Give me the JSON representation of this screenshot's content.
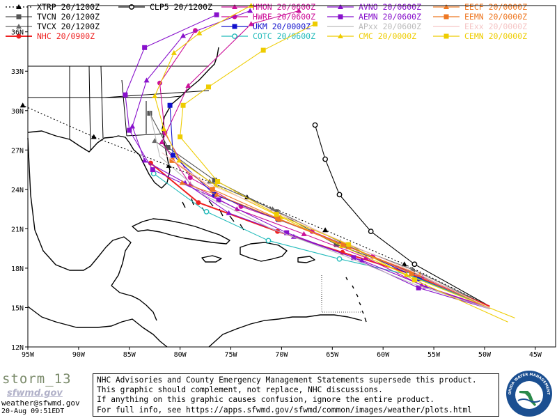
{
  "legend": [
    {
      "label": "XTRP 20/1200Z",
      "color": "#000000",
      "marker": "triangle",
      "dash": "dotted"
    },
    {
      "label": "TVCN 20/1200Z",
      "color": "#555555",
      "marker": "square",
      "dash": "solid"
    },
    {
      "label": "TVCX 20/1200Z",
      "color": "#666666",
      "marker": "triangle",
      "dash": "solid"
    },
    {
      "label": "NHC 20/0900Z",
      "color": "#ee2222",
      "marker": "circle",
      "dash": "solid"
    },
    {
      "label": "CLP5 20/1200Z",
      "color": "#000000",
      "marker": "ring",
      "dash": "solid"
    },
    {
      "label": "HMON 20/0600Z",
      "color": "#cc1199",
      "marker": "triangle",
      "dash": "solid"
    },
    {
      "label": "HWRF 20/0600Z",
      "color": "#cc1199",
      "marker": "circle",
      "dash": "solid"
    },
    {
      "label": "UKM 20/0000Z",
      "color": "#1111cc",
      "marker": "square",
      "dash": "solid"
    },
    {
      "label": "COTC 20/0600Z",
      "color": "#22bbbb",
      "marker": "ring",
      "dash": "solid"
    },
    {
      "label": "AVNO 20/0600Z",
      "color": "#8811cc",
      "marker": "triangle",
      "dash": "solid"
    },
    {
      "label": "AEMN 20/0600Z",
      "color": "#8811cc",
      "marker": "square",
      "dash": "solid"
    },
    {
      "label": "APxx 20/0600Z",
      "color": "#bbbbbb",
      "marker": "none",
      "dash": "solid"
    },
    {
      "label": "CMC 20/0000Z",
      "color": "#eecc00",
      "marker": "triangle",
      "dash": "solid"
    },
    {
      "label": "EECF 20/0000Z",
      "color": "#ee7722",
      "marker": "triangle",
      "dash": "solid"
    },
    {
      "label": "EEMN 20/0000Z",
      "color": "#ee7722",
      "marker": "square",
      "dash": "solid"
    },
    {
      "label": "EExx 20/0000Z",
      "color": "#f5c5c5",
      "marker": "none",
      "dash": "solid"
    },
    {
      "label": "CEMN 20/0000Z",
      "color": "#eecc00",
      "marker": "square",
      "dash": "solid"
    }
  ],
  "map": {
    "lon_range": [
      -95,
      -43
    ],
    "lat_range": [
      12,
      38
    ],
    "lon_ticks": [
      {
        "lon": -95,
        "label": "95W"
      },
      {
        "lon": -90,
        "label": "90W"
      },
      {
        "lon": -85,
        "label": "85W"
      },
      {
        "lon": -80,
        "label": "80W"
      },
      {
        "lon": -75,
        "label": "75W"
      },
      {
        "lon": -70,
        "label": "70W"
      },
      {
        "lon": -65,
        "label": "65W"
      },
      {
        "lon": -60,
        "label": "60W"
      },
      {
        "lon": -55,
        "label": "55W"
      },
      {
        "lon": -50,
        "label": "50W"
      },
      {
        "lon": -45,
        "label": "45W"
      }
    ],
    "lat_ticks": [
      {
        "lat": 12,
        "label": "12N"
      },
      {
        "lat": 15,
        "label": "15N"
      },
      {
        "lat": 18,
        "label": "18N"
      },
      {
        "lat": 21,
        "label": "21N"
      },
      {
        "lat": 24,
        "label": "24N"
      },
      {
        "lat": 27,
        "label": "27N"
      },
      {
        "lat": 30,
        "label": "30N"
      },
      {
        "lat": 33,
        "label": "33N"
      },
      {
        "lat": 36,
        "label": "36N"
      }
    ]
  },
  "tracks": [
    {
      "name": "XTRP",
      "color": "#000000",
      "marker": "triangle",
      "dash": "dotted",
      "points": [
        [
          -49.5,
          15.1
        ],
        [
          -57.9,
          18.3
        ],
        [
          -65.7,
          20.9
        ],
        [
          -73.4,
          23.4
        ],
        [
          -81.1,
          25.8
        ],
        [
          -88.5,
          28.0
        ],
        [
          -95.5,
          30.4
        ]
      ]
    },
    {
      "name": "CLP5",
      "color": "#000000",
      "marker": "ring",
      "dash": "solid",
      "points": [
        [
          -49.5,
          15.1
        ],
        [
          -56.9,
          18.3
        ],
        [
          -61.2,
          20.8
        ],
        [
          -64.3,
          23.6
        ],
        [
          -65.7,
          26.3
        ],
        [
          -66.7,
          28.9
        ]
      ]
    },
    {
      "name": "TVCN",
      "color": "#555555",
      "marker": "square",
      "dash": "solid",
      "points": [
        [
          -49.5,
          15.1
        ],
        [
          -57.1,
          17.7
        ],
        [
          -64.6,
          19.8
        ],
        [
          -70.5,
          22.3
        ],
        [
          -76.6,
          24.7
        ],
        [
          -81.2,
          27.2
        ],
        [
          -83.0,
          29.8
        ]
      ]
    },
    {
      "name": "TVCX",
      "color": "#666666",
      "marker": "triangle",
      "dash": "solid",
      "points": [
        [
          -49.5,
          15.1
        ],
        [
          -57.1,
          17.9
        ],
        [
          -64.2,
          20.0
        ],
        [
          -70.9,
          22.5
        ],
        [
          -77.1,
          24.6
        ],
        [
          -82.5,
          27.7
        ]
      ]
    },
    {
      "name": "NHC",
      "color": "#ee2222",
      "marker": "circle",
      "dash": "solid",
      "points": [
        [
          -49.5,
          15.1
        ],
        [
          -57.4,
          17.6
        ],
        [
          -64.0,
          19.2
        ],
        [
          -70.4,
          20.8
        ],
        [
          -78.2,
          23.0
        ],
        [
          -82.9,
          26.0
        ]
      ]
    },
    {
      "name": "HMON",
      "color": "#cc1199",
      "marker": "triangle",
      "dash": "solid",
      "points": [
        [
          -49.5,
          15.0
        ],
        [
          -56.2,
          16.7
        ],
        [
          -61.7,
          18.8
        ],
        [
          -67.8,
          20.6
        ],
        [
          -74.4,
          22.5
        ],
        [
          -79.0,
          24.4
        ],
        [
          -81.8,
          27.6
        ],
        [
          -79.2,
          31.9
        ],
        [
          -73.0,
          36.6
        ],
        [
          -68.3,
          37.6
        ]
      ]
    },
    {
      "name": "HWRF",
      "color": "#cc1199",
      "marker": "circle",
      "dash": "solid",
      "points": [
        [
          -49.5,
          15.0
        ],
        [
          -56.2,
          17.3
        ],
        [
          -61.0,
          18.9
        ],
        [
          -67.0,
          20.8
        ],
        [
          -74.0,
          22.7
        ],
        [
          -79.0,
          24.9
        ],
        [
          -81.5,
          28.3
        ],
        [
          -82.0,
          32.1
        ],
        [
          -78.5,
          36.1
        ]
      ]
    },
    {
      "name": "UKM",
      "color": "#1111cc",
      "marker": "square",
      "dash": "solid",
      "points": [
        [
          -49.5,
          15.0
        ],
        [
          -56.4,
          17.2
        ],
        [
          -63.5,
          19.7
        ],
        [
          -70.3,
          21.7
        ],
        [
          -76.6,
          23.6
        ],
        [
          -80.7,
          26.6
        ],
        [
          -81.0,
          30.4
        ]
      ]
    },
    {
      "name": "COTC",
      "color": "#22bbbb",
      "marker": "ring",
      "dash": "solid",
      "points": [
        [
          -49.5,
          15.0
        ],
        [
          -57.5,
          17.5
        ],
        [
          -64.3,
          18.7
        ],
        [
          -71.3,
          20.1
        ],
        [
          -77.4,
          22.3
        ],
        [
          -82.6,
          25.2
        ]
      ]
    },
    {
      "name": "AVNO",
      "color": "#8811cc",
      "marker": "triangle",
      "dash": "solid",
      "points": [
        [
          -49.5,
          14.9
        ],
        [
          -55.8,
          16.6
        ],
        [
          -62.1,
          18.6
        ],
        [
          -68.8,
          20.4
        ],
        [
          -75.2,
          22.2
        ],
        [
          -79.5,
          24.5
        ],
        [
          -83.5,
          26.2
        ],
        [
          -84.7,
          28.8
        ],
        [
          -83.3,
          32.3
        ],
        [
          -79.7,
          35.7
        ],
        [
          -73.1,
          37.6
        ]
      ]
    },
    {
      "name": "AEMN",
      "color": "#8811cc",
      "marker": "square",
      "dash": "solid",
      "points": [
        [
          -49.5,
          14.9
        ],
        [
          -56.5,
          16.5
        ],
        [
          -62.9,
          18.8
        ],
        [
          -69.5,
          20.7
        ],
        [
          -76.2,
          23.2
        ],
        [
          -82.7,
          25.5
        ],
        [
          -85.0,
          28.5
        ],
        [
          -85.4,
          31.2
        ],
        [
          -83.5,
          34.8
        ],
        [
          -76.4,
          37.3
        ]
      ]
    },
    {
      "name": "APxx",
      "color": "#bbbbbb",
      "marker": "none",
      "dash": "solid",
      "points": [
        [
          -49.5,
          14.9
        ],
        [
          -57.0,
          16.8
        ],
        [
          -64.0,
          19.0
        ],
        [
          -71.0,
          21.0
        ],
        [
          -77.5,
          23.5
        ],
        [
          -82.0,
          26.5
        ],
        [
          -83.0,
          30.0
        ]
      ]
    },
    {
      "name": "CMC",
      "color": "#eecc00",
      "marker": "triangle",
      "dash": "solid",
      "points": [
        [
          -47.0,
          14.2
        ],
        [
          -57.7,
          17.5
        ],
        [
          -64.1,
          19.7
        ],
        [
          -70.1,
          21.9
        ],
        [
          -76.5,
          24.3
        ],
        [
          -80.1,
          26.2
        ],
        [
          -81.6,
          28.6
        ],
        [
          -82.5,
          31.1
        ],
        [
          -80.6,
          34.4
        ],
        [
          -78.1,
          35.9
        ],
        [
          -73.0,
          38.0
        ]
      ]
    },
    {
      "name": "EECF",
      "color": "#ee7722",
      "marker": "triangle",
      "dash": "solid",
      "points": [
        [
          -49.5,
          15.0
        ],
        [
          -56.4,
          17.5
        ],
        [
          -63.4,
          19.6
        ],
        [
          -70.2,
          21.7
        ],
        [
          -76.4,
          23.6
        ],
        [
          -79.8,
          24.5
        ]
      ]
    },
    {
      "name": "EEMN",
      "color": "#ee7722",
      "marker": "square",
      "dash": "solid",
      "points": [
        [
          -49.5,
          15.0
        ],
        [
          -57.2,
          17.6
        ],
        [
          -63.9,
          19.8
        ],
        [
          -70.4,
          21.8
        ],
        [
          -76.8,
          24.0
        ],
        [
          -80.8,
          26.2
        ]
      ]
    },
    {
      "name": "EExx",
      "color": "#f5c5c5",
      "marker": "none",
      "dash": "solid",
      "points": [
        [
          -49.5,
          15.0
        ],
        [
          -57.5,
          17.9
        ],
        [
          -64.5,
          20.2
        ],
        [
          -71.0,
          22.4
        ],
        [
          -77.5,
          24.5
        ],
        [
          -81.8,
          26.8
        ]
      ]
    },
    {
      "name": "CEMN",
      "color": "#eecc00",
      "marker": "square",
      "dash": "solid",
      "points": [
        [
          -47.7,
          13.9
        ],
        [
          -56.9,
          17.1
        ],
        [
          -63.4,
          19.8
        ],
        [
          -70.5,
          22.1
        ],
        [
          -76.3,
          24.6
        ],
        [
          -80.0,
          28.0
        ],
        [
          -79.7,
          30.4
        ],
        [
          -77.2,
          31.8
        ],
        [
          -71.8,
          34.6
        ],
        [
          -66.7,
          36.6
        ]
      ]
    }
  ],
  "footer": {
    "storm_name": "storm_13",
    "logo_text": "sfwmd.gov",
    "email": "weather@sfwmd.gov",
    "timestamp": "20-Aug 09:51EDT",
    "disclaimer": [
      "NHC Advisories and County Emergency Management Statements supersede this product.",
      "This graphic should complement, not replace, NHC discussions.",
      "If anything on this graphic causes confusion, ignore the entire product.",
      "For full info, see  https://apps.sfwmd.gov/sfwmd/common/images/weather/plots.html"
    ],
    "seal_text": "SOUTH FLORIDA WATER MANAGEMENT DISTRICT"
  }
}
